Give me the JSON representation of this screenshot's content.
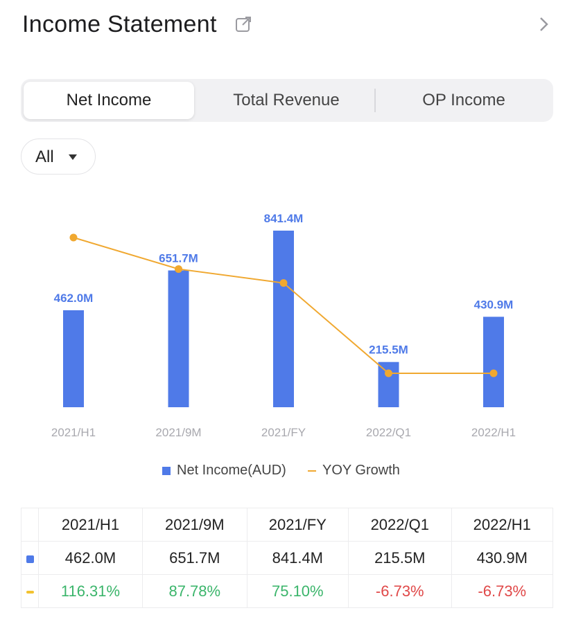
{
  "header": {
    "title": "Income Statement"
  },
  "tabs": [
    {
      "label": "Net Income",
      "active": true
    },
    {
      "label": "Total Revenue",
      "active": false
    },
    {
      "label": "OP Income",
      "active": false
    }
  ],
  "filter": {
    "value": "All"
  },
  "colors": {
    "bar": "#4f7ae8",
    "line": "#f0a830",
    "positive": "#3bb56b",
    "negative": "#e04848"
  },
  "chart_data": {
    "type": "bar",
    "categories": [
      "2021/H1",
      "2021/9M",
      "2021/FY",
      "2022/Q1",
      "2022/H1"
    ],
    "series": [
      {
        "name": "Net Income(AUD)",
        "type": "bar",
        "values": [
          462.0,
          651.7,
          841.4,
          215.5,
          430.9
        ],
        "labels": [
          "462.0M",
          "651.7M",
          "841.4M",
          "215.5M",
          "430.9M"
        ]
      },
      {
        "name": "YOY Growth",
        "type": "line",
        "values": [
          116.31,
          87.78,
          75.1,
          -6.73,
          -6.73
        ]
      }
    ],
    "legend": "bottom"
  },
  "table": {
    "headers": [
      "2021/H1",
      "2021/9M",
      "2021/FY",
      "2022/Q1",
      "2022/H1"
    ],
    "income_row": [
      "462.0M",
      "651.7M",
      "841.4M",
      "215.5M",
      "430.9M"
    ],
    "growth_row": [
      "116.31%",
      "87.78%",
      "75.10%",
      "-6.73%",
      "-6.73%"
    ]
  }
}
